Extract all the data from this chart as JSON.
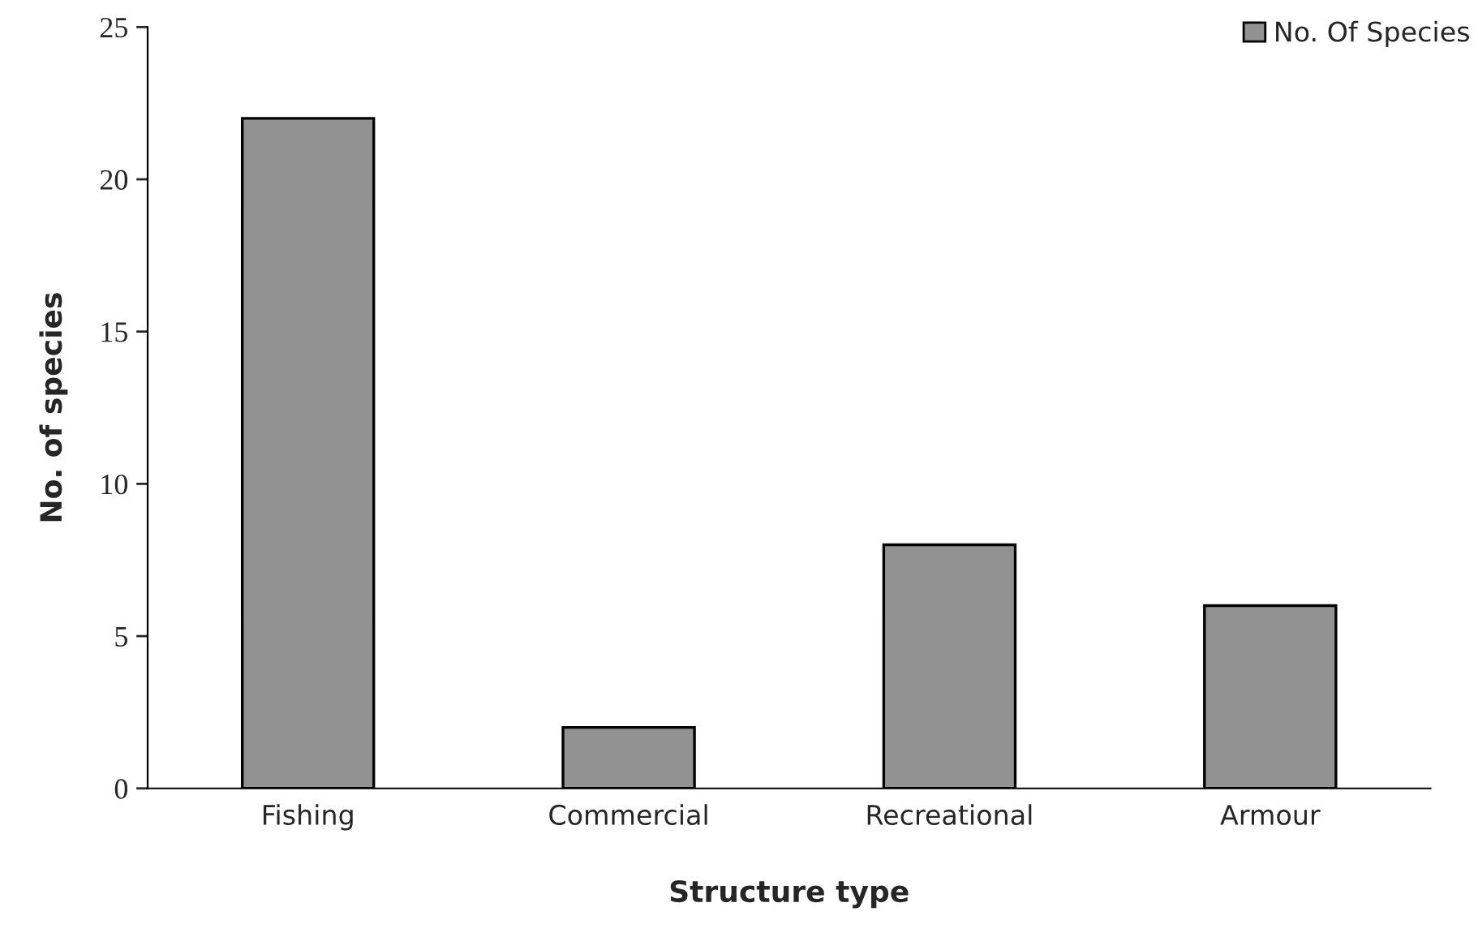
{
  "chart_data": {
    "type": "bar",
    "xlabel": "Structure type",
    "ylabel": "No. of species",
    "categories": [
      "Fishing",
      "Commercial",
      "Recreational",
      "Armour"
    ],
    "series": [
      {
        "name": "No. Of Species",
        "color": "#929292",
        "values": [
          22,
          2,
          8,
          6
        ]
      }
    ],
    "ylim": [
      0,
      25
    ],
    "yticks": [
      0,
      5,
      10,
      15,
      20,
      25
    ],
    "grid": false,
    "legend": "top right"
  }
}
